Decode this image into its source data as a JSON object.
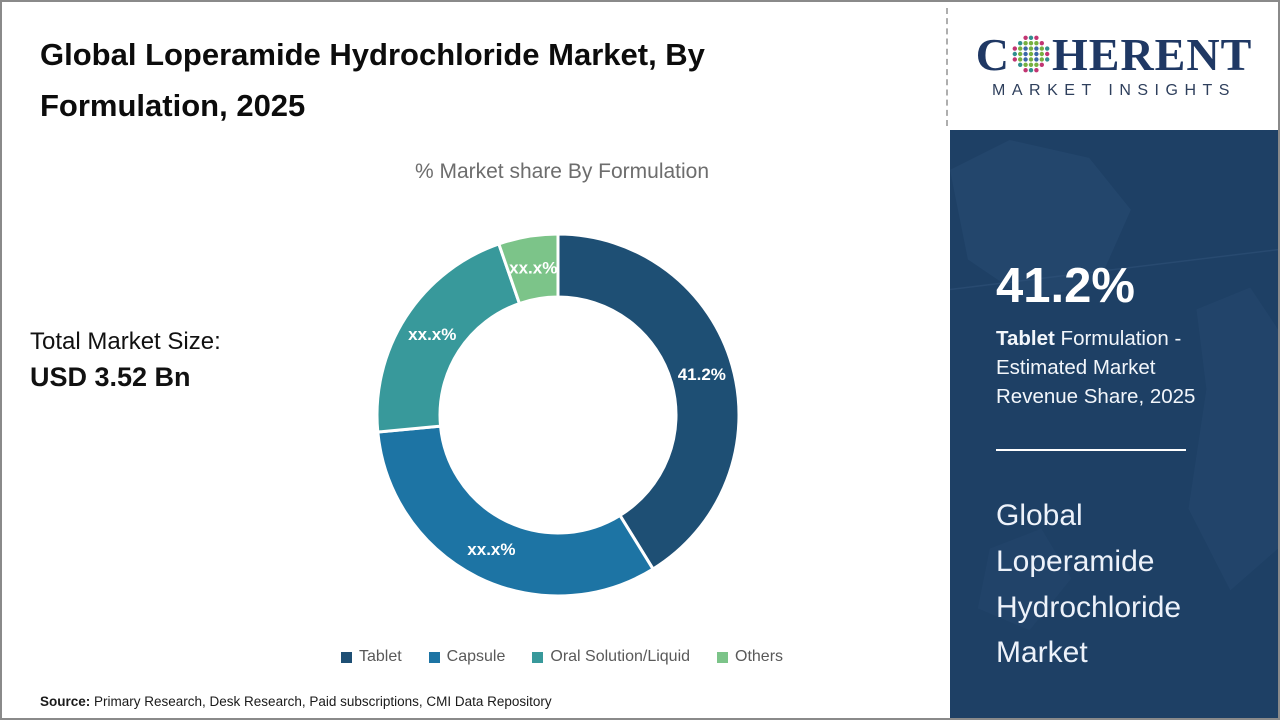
{
  "header": {
    "title_line1": "Global Loperamide Hydrochloride Market, By",
    "title_line2": "Formulation, 2025"
  },
  "logo": {
    "brand_prefix": "C",
    "brand_suffix": "HERENT",
    "brand_subtitle": "MARKET INSIGHTS",
    "brand_color": "#1f3864"
  },
  "left_panel": {
    "total_market_size_label": "Total Market Size:",
    "total_market_size_value": "USD 3.52 Bn"
  },
  "chart_data": {
    "type": "pie",
    "variant": "donut",
    "title": "% Market share By Formulation",
    "donut_hole_ratio": 0.65,
    "start_angle_deg": 0,
    "direction": "clockwise",
    "legend_position": "bottom",
    "segments": [
      {
        "label": "Tablet",
        "display_value": "41.2%",
        "share_pct": 41.2,
        "color": "#1e4f74"
      },
      {
        "label": "Capsule",
        "display_value": "xx.x%",
        "share_pct": 32.3,
        "color": "#1d74a4"
      },
      {
        "label": "Oral Solution/Liquid",
        "display_value": "xx.x%",
        "share_pct": 21.2,
        "color": "#38999b"
      },
      {
        "label": "Others",
        "display_value": "xx.x%",
        "share_pct": 5.3,
        "color": "#7cc489"
      }
    ],
    "note": "Only Tablet share (41.2%) is disclosed; other segment data labels are masked as xx.x%"
  },
  "sidebar": {
    "bg_color": "#1e4065",
    "highlight_value": "41.2%",
    "highlight_bold": "Tablet",
    "highlight_rest": " Formulation - Estimated Market Revenue Share, 2025",
    "market_name": "Global Loperamide Hydrochloride Market"
  },
  "footer": {
    "source_label": "Source:",
    "source_text": " Primary Research, Desk Research, Paid subscriptions, CMI Data Repository"
  }
}
